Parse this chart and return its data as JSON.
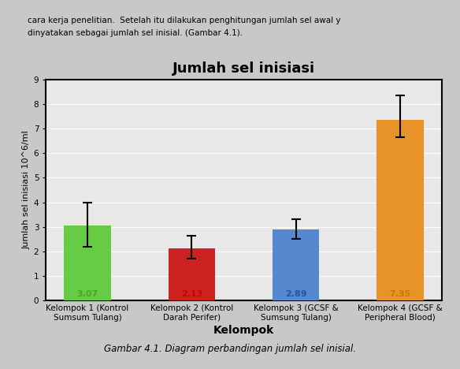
{
  "title": "Jumlah sel inisiasi",
  "xlabel": "Kelompok",
  "ylabel": "Jumlah sel inisiasi 10^6/ml",
  "categories": [
    "Kelompok 1 (Kontrol\nSumsum Tulang)",
    "Kelompok 2 (Kontrol\nDarah Perifer)",
    "Kelompok 3 (GCSF &\nSumsung Tulang)",
    "Kelompok 4 (GCSF &\nPeripheral Blood)"
  ],
  "values": [
    3.07,
    2.13,
    2.89,
    7.35
  ],
  "errors_upper": [
    0.93,
    0.5,
    0.41,
    1.0
  ],
  "errors_lower": [
    0.87,
    0.43,
    0.39,
    0.7
  ],
  "bar_colors": [
    "#66cc44",
    "#cc2222",
    "#5588cc",
    "#e8922a"
  ],
  "value_labels": [
    "3.07",
    "2.13",
    "2.89",
    "7.35"
  ],
  "value_label_colors": [
    "#44aa22",
    "#cc0000",
    "#2255aa",
    "#cc7700"
  ],
  "ylim": [
    0,
    9
  ],
  "yticks": [
    0,
    1,
    2,
    3,
    4,
    5,
    6,
    7,
    8,
    9
  ],
  "page_bg": "#c8c8c8",
  "plot_bg_color": "#e8e8e8",
  "title_fontsize": 13,
  "axis_label_fontsize": 8,
  "tick_fontsize": 7.5,
  "value_fontsize": 8,
  "bar_width": 0.45,
  "capsize": 4,
  "top_text_line1": "cara kerja penelitian.  Setelah itu dilakukan penghitungan jumlah sel awal y",
  "top_text_line2": "dinyatakan sebagai jumlah sel inisial. (Gambar 4.1).",
  "caption": "Gambar 4.1. Diagram perbandingan jumlah sel inisial."
}
